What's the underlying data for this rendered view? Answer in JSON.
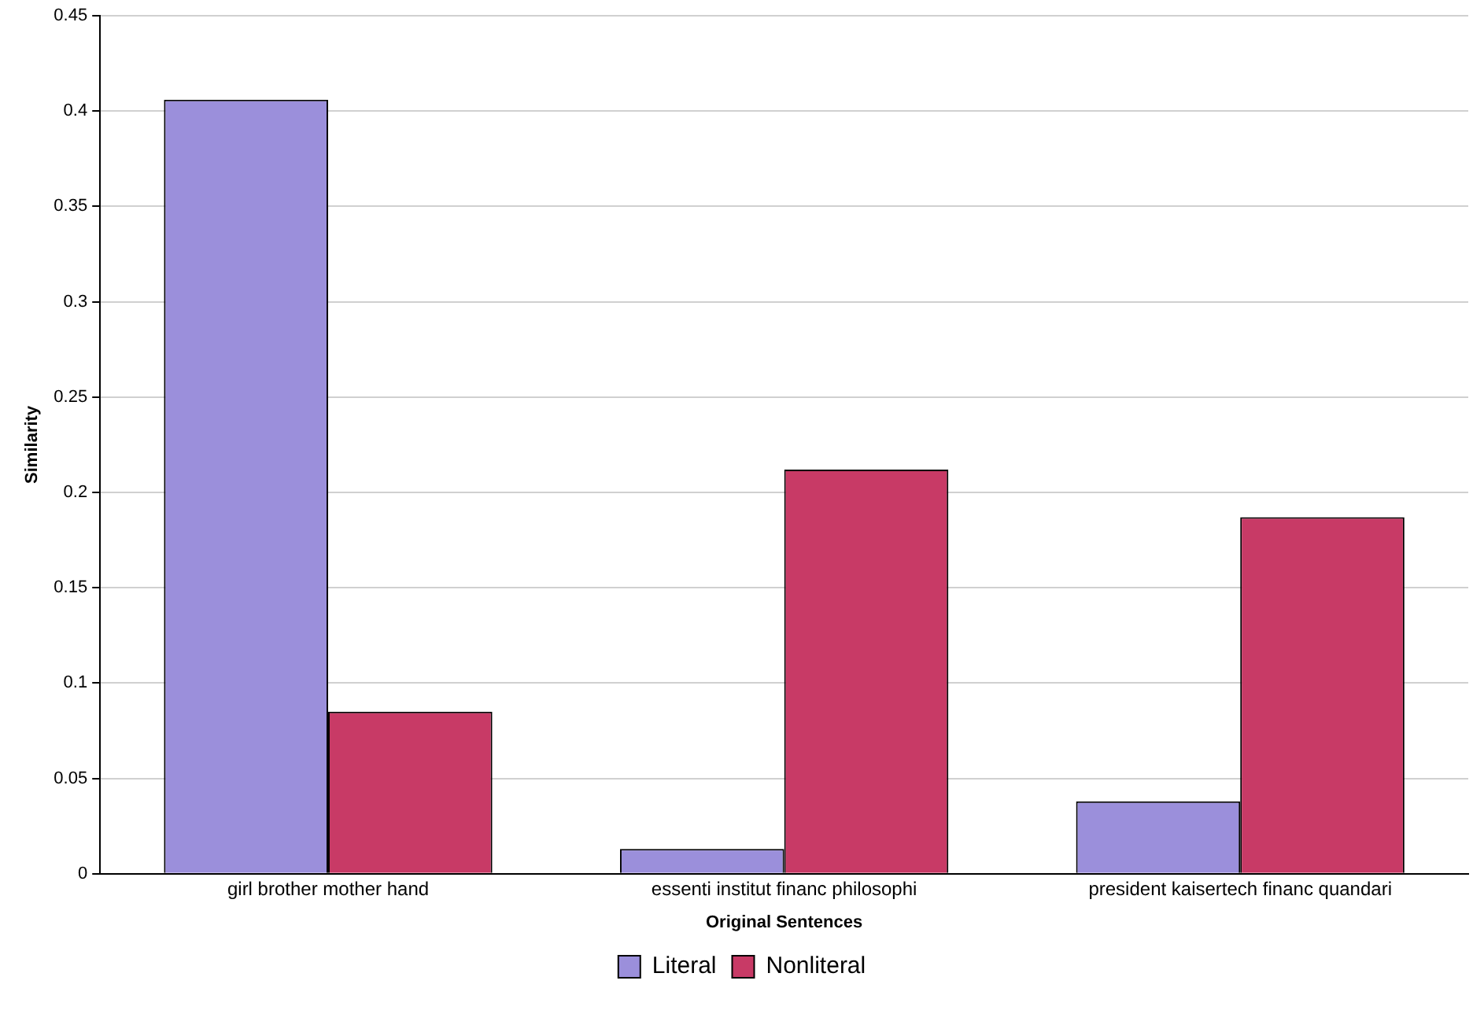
{
  "chart_data": {
    "type": "bar",
    "xlabel": "Original Sentences",
    "ylabel": "Similarity",
    "categories": [
      "girl brother mother hand",
      "essenti institut financ philosophi",
      "president kaisertech financ quandari"
    ],
    "series": [
      {
        "name": "Literal",
        "color": "#9b8fdb",
        "values": [
          0.406,
          0.013,
          0.038
        ]
      },
      {
        "name": "Nonliteral",
        "color": "#c83a66",
        "values": [
          0.085,
          0.212,
          0.187
        ]
      }
    ],
    "ylim": [
      0,
      0.45
    ],
    "yticks": [
      0,
      0.05,
      0.1,
      0.15,
      0.2,
      0.25,
      0.3,
      0.35,
      0.4,
      0.45
    ],
    "grid": "y",
    "legend": "bottom"
  }
}
